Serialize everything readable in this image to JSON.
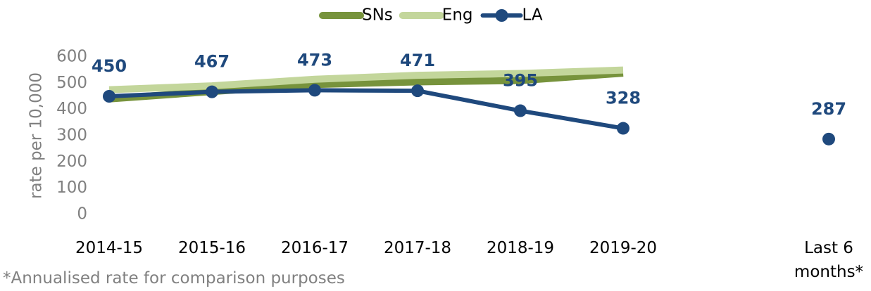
{
  "chart_data": {
    "type": "line",
    "y_label": "rate per 10,000",
    "footnote": "*Annualised rate for comparison purposes",
    "categories": [
      "2014-15",
      "2015-16",
      "2016-17",
      "2017-18",
      "2018-19",
      "2019-20",
      null,
      "Last 6 months*"
    ],
    "series": [
      {
        "name": "SNs",
        "color": "#77933c",
        "values": [
          440,
          468,
          495,
          505,
          510,
          538,
          null,
          null
        ]
      },
      {
        "name": "Eng",
        "color": "#c3d69b",
        "values": [
          475,
          490,
          515,
          530,
          537,
          550,
          null,
          null
        ]
      },
      {
        "name": "LA",
        "color": "#1f497d",
        "values": [
          450,
          467,
          473,
          471,
          395,
          328,
          null,
          287
        ]
      }
    ],
    "ylim": [
      0,
      600
    ],
    "yticks": [
      0,
      100,
      200,
      300,
      400,
      500,
      600
    ],
    "legend": "top"
  }
}
